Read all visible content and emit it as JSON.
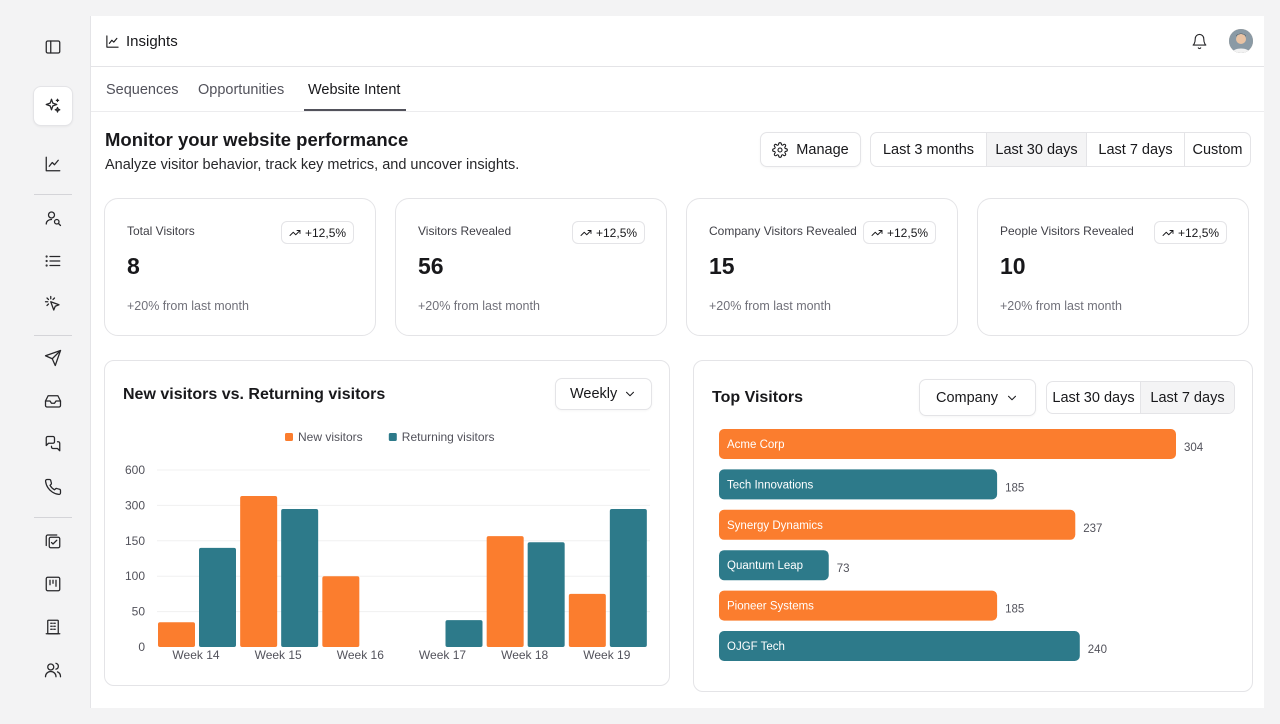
{
  "sidebar": {
    "icons": [
      "panel-toggle-icon",
      "sparkles-icon",
      "line-chart-icon",
      "user-search-icon",
      "list-icon",
      "click-icon",
      "send-icon",
      "inbox-icon",
      "messages-icon",
      "phone-icon",
      "checklist-icon",
      "board-icon",
      "building-icon",
      "users-icon"
    ],
    "active": "sparkles-icon"
  },
  "header": {
    "title": "Insights"
  },
  "tabs": [
    {
      "label": "Sequences",
      "active": false
    },
    {
      "label": "Opportunities",
      "active": false
    },
    {
      "label": "Website Intent",
      "active": true
    }
  ],
  "page": {
    "title": "Monitor your website performance",
    "subtitle": "Analyze visitor behavior, track key metrics, and uncover insights.",
    "manage_label": "Manage",
    "ranges": [
      "Last 3 months",
      "Last 30 days",
      "Last 7 days",
      "Custom"
    ],
    "selected_range": "Last 30 days"
  },
  "stats": [
    {
      "label": "Total Visitors",
      "value": "8",
      "change": "+12,5%",
      "note": "+20% from last month"
    },
    {
      "label": "Visitors Revealed",
      "value": "56",
      "change": "+12,5%",
      "note": "+20% from last month"
    },
    {
      "label": "Company Visitors Revealed",
      "value": "15",
      "change": "+12,5%",
      "note": "+20% from last month"
    },
    {
      "label": "People Visitors Revealed",
      "value": "10",
      "change": "+12,5%",
      "note": "+20% from last month"
    }
  ],
  "visitors_panel": {
    "title": "New visitors vs. Returning visitors",
    "period": "Weekly"
  },
  "top_panel": {
    "title": "Top Visitors",
    "group_by": "Company",
    "ranges": [
      "Last 30 days",
      "Last 7 days"
    ],
    "selected_range": "Last 7 days"
  },
  "colors": {
    "orange": "#fb7d2e",
    "teal": "#2d7a8a"
  },
  "chart_data": [
    {
      "type": "bar",
      "title": "New visitors vs. Returning visitors",
      "categories": [
        "Week 14",
        "Week 15",
        "Week 16",
        "Week 17",
        "Week 18",
        "Week 19"
      ],
      "y_ticks": [
        "0",
        "50",
        "100",
        "150",
        "300",
        "600"
      ],
      "series": [
        {
          "name": "New visitors",
          "color": "#fb7d2e",
          "values": [
            35,
            380,
            100,
            0,
            170,
            75
          ]
        },
        {
          "name": "Returning visitors",
          "color": "#2d7a8a",
          "values": [
            140,
            285,
            0,
            38,
            148,
            285
          ]
        }
      ],
      "legend": "top-center",
      "grid": true
    },
    {
      "type": "bar",
      "orientation": "horizontal",
      "title": "Top Visitors",
      "categories": [
        "Acme Corp",
        "Tech Innovations",
        "Synergy Dynamics",
        "Quantum Leap",
        "Pioneer Systems",
        "OJGF Tech"
      ],
      "values": [
        304,
        185,
        237,
        73,
        185,
        240
      ],
      "colors": [
        "#fb7d2e",
        "#2d7a8a",
        "#fb7d2e",
        "#2d7a8a",
        "#fb7d2e",
        "#2d7a8a"
      ]
    }
  ]
}
